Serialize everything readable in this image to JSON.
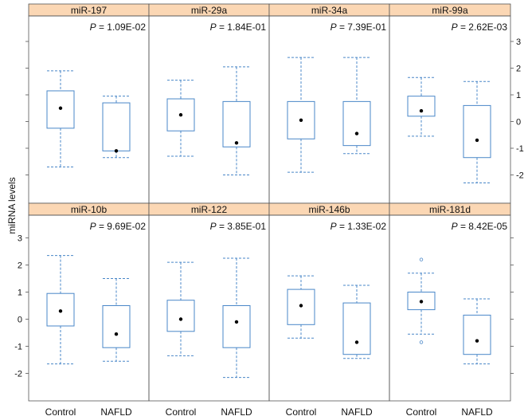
{
  "ylabel": "miRNA levels",
  "groups": [
    "Control",
    "NAFLD"
  ],
  "y_ticks": [
    "3",
    "2",
    "1",
    "0",
    "-1",
    "-2"
  ],
  "colors": {
    "box": "#4a87c8",
    "strip": "#fbd7b4",
    "frame": "#555555"
  },
  "chart_data": {
    "type": "box",
    "layout": "2x4 panel grid",
    "ylim": [
      -3,
      3.5
    ],
    "panels": [
      {
        "title": "miR-197",
        "p_label": "P",
        "p_value": "= 1.09E-02",
        "control": {
          "whisker_low": -1.7,
          "q1": -0.25,
          "q3": 1.15,
          "whisker_high": 1.9,
          "median": 0.5,
          "outliers": []
        },
        "nafld": {
          "whisker_low": -1.35,
          "q1": -1.1,
          "q3": 0.7,
          "whisker_high": 0.95,
          "median": -1.1,
          "outliers": []
        }
      },
      {
        "title": "miR-29a",
        "p_label": "P",
        "p_value": "= 1.84E-01",
        "control": {
          "whisker_low": -1.3,
          "q1": -0.35,
          "q3": 0.85,
          "whisker_high": 1.55,
          "median": 0.25,
          "outliers": []
        },
        "nafld": {
          "whisker_low": -2.0,
          "q1": -0.95,
          "q3": 0.75,
          "whisker_high": 2.05,
          "median": -0.8,
          "outliers": []
        }
      },
      {
        "title": "miR-34a",
        "p_label": "P",
        "p_value": "= 7.39E-01",
        "control": {
          "whisker_low": -1.9,
          "q1": -0.65,
          "q3": 0.75,
          "whisker_high": 2.4,
          "median": 0.05,
          "outliers": []
        },
        "nafld": {
          "whisker_low": -1.2,
          "q1": -0.9,
          "q3": 0.75,
          "whisker_high": 2.4,
          "median": -0.45,
          "outliers": []
        }
      },
      {
        "title": "miR-99a",
        "p_label": "P",
        "p_value": "= 2.62E-03",
        "control": {
          "whisker_low": -0.55,
          "q1": 0.2,
          "q3": 0.95,
          "whisker_high": 1.65,
          "median": 0.4,
          "outliers": []
        },
        "nafld": {
          "whisker_low": -2.3,
          "q1": -1.35,
          "q3": 0.6,
          "whisker_high": 1.5,
          "median": -0.7,
          "outliers": []
        }
      },
      {
        "title": "miR-10b",
        "p_label": "P",
        "p_value": "= 9.69E-02",
        "control": {
          "whisker_low": -1.65,
          "q1": -0.25,
          "q3": 0.95,
          "whisker_high": 2.35,
          "median": 0.3,
          "outliers": []
        },
        "nafld": {
          "whisker_low": -1.55,
          "q1": -1.05,
          "q3": 0.5,
          "whisker_high": 1.5,
          "median": -0.55,
          "outliers": []
        }
      },
      {
        "title": "miR-122",
        "p_label": "P",
        "p_value": "= 3.85E-01",
        "control": {
          "whisker_low": -1.35,
          "q1": -0.45,
          "q3": 0.7,
          "whisker_high": 2.1,
          "median": 0.0,
          "outliers": []
        },
        "nafld": {
          "whisker_low": -2.15,
          "q1": -1.05,
          "q3": 0.5,
          "whisker_high": 2.25,
          "median": -0.1,
          "outliers": []
        }
      },
      {
        "title": "miR-146b",
        "p_label": "P",
        "p_value": "= 1.33E-02",
        "control": {
          "whisker_low": -0.7,
          "q1": -0.2,
          "q3": 1.1,
          "whisker_high": 1.6,
          "median": 0.5,
          "outliers": []
        },
        "nafld": {
          "whisker_low": -1.45,
          "q1": -1.3,
          "q3": 0.6,
          "whisker_high": 1.25,
          "median": -0.85,
          "outliers": []
        }
      },
      {
        "title": "miR-181d",
        "p_label": "P",
        "p_value": "= 8.42E-05",
        "control": {
          "whisker_low": -0.55,
          "q1": 0.35,
          "q3": 1.0,
          "whisker_high": 1.7,
          "median": 0.65,
          "outliers": [
            2.2,
            -0.85
          ]
        },
        "nafld": {
          "whisker_low": -1.65,
          "q1": -1.3,
          "q3": 0.15,
          "whisker_high": 0.75,
          "median": -0.8,
          "outliers": []
        }
      }
    ]
  }
}
